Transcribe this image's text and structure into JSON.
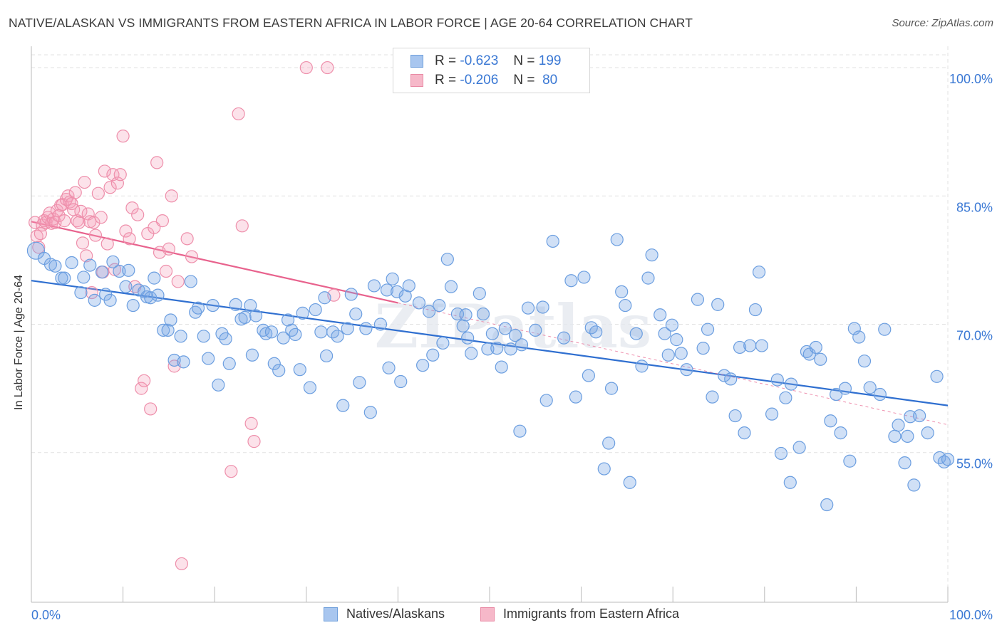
{
  "title": "NATIVE/ALASKAN VS IMMIGRANTS FROM EASTERN AFRICA IN LABOR FORCE | AGE 20-64 CORRELATION CHART",
  "source": "Source: ZipAtlas.com",
  "watermark": "ZIPatlas",
  "legend": {
    "rows": [
      {
        "r_label": "R =",
        "r_value": "-0.623",
        "n_label": "N =",
        "n_value": "199",
        "color": "#a8c6ef",
        "border": "#6f9fdb"
      },
      {
        "r_label": "R =",
        "r_value": "-0.206",
        "n_label": "N =",
        "n_value": "80",
        "color": "#f6b8c9",
        "border": "#e98aa5"
      }
    ]
  },
  "bottom_legend": [
    {
      "label": "Natives/Alaskans",
      "color": "#a8c6ef",
      "border": "#6f9fdb"
    },
    {
      "label": "Immigrants from Eastern Africa",
      "color": "#f6b8c9",
      "border": "#e98aa5"
    }
  ],
  "colors": {
    "blue_fill": "rgba(120,165,230,0.35)",
    "blue_stroke": "#6b9ee0",
    "blue_line": "#2f6fd0",
    "pink_fill": "rgba(245,160,185,0.30)",
    "pink_stroke": "#ee8fab",
    "pink_line": "#e8628d",
    "tick_label": "#3a78d4",
    "grid": "#e2e2e2"
  },
  "chart_data": {
    "type": "scatter",
    "xlabel": "",
    "ylabel": "In Labor Force | Age 20-64",
    "xlim": [
      0,
      100
    ],
    "ylim": [
      37.5,
      102.5
    ],
    "x_ticks": [
      {
        "value": 0,
        "label": "0.0%"
      },
      {
        "value": 100,
        "label": "100.0%"
      }
    ],
    "y_ticks": [
      {
        "value": 55,
        "label": "55.0%"
      },
      {
        "value": 70,
        "label": "70.0%"
      },
      {
        "value": 85,
        "label": "85.0%"
      },
      {
        "value": 100,
        "label": "100.0%"
      }
    ],
    "grid": true,
    "series": [
      {
        "name": "Natives/Alaskans",
        "trend": {
          "x": [
            0,
            100
          ],
          "y": [
            75.1,
            60.5
          ]
        },
        "points": [
          [
            0.5,
            78.6
          ],
          [
            1.4,
            77.7
          ],
          [
            2.1,
            77.0
          ],
          [
            2.6,
            76.8
          ],
          [
            3.3,
            75.4
          ],
          [
            3.6,
            75.4
          ],
          [
            4.4,
            77.2
          ],
          [
            5.4,
            73.7
          ],
          [
            5.7,
            75.5
          ],
          [
            6.4,
            76.9
          ],
          [
            6.9,
            72.8
          ],
          [
            7.7,
            76.1
          ],
          [
            8.1,
            73.5
          ],
          [
            8.6,
            72.8
          ],
          [
            8.9,
            77.3
          ],
          [
            9.6,
            76.2
          ],
          [
            10.3,
            74.4
          ],
          [
            10.6,
            76.3
          ],
          [
            11.1,
            72.2
          ],
          [
            11.7,
            74.0
          ],
          [
            12.3,
            73.8
          ],
          [
            12.6,
            73.2
          ],
          [
            13.0,
            73.1
          ],
          [
            13.4,
            75.4
          ],
          [
            13.8,
            73.4
          ],
          [
            14.4,
            69.3
          ],
          [
            14.9,
            69.3
          ],
          [
            15.2,
            70.5
          ],
          [
            15.6,
            65.8
          ],
          [
            16.3,
            68.6
          ],
          [
            16.6,
            65.6
          ],
          [
            17.4,
            75.0
          ],
          [
            17.9,
            71.4
          ],
          [
            18.2,
            71.9
          ],
          [
            18.8,
            68.6
          ],
          [
            19.3,
            66.0
          ],
          [
            19.8,
            72.2
          ],
          [
            20.4,
            62.9
          ],
          [
            20.8,
            68.9
          ],
          [
            21.2,
            68.3
          ],
          [
            21.6,
            65.4
          ],
          [
            22.3,
            72.3
          ],
          [
            22.9,
            70.6
          ],
          [
            23.3,
            70.8
          ],
          [
            23.9,
            72.2
          ],
          [
            24.1,
            66.4
          ],
          [
            24.5,
            71.0
          ],
          [
            25.3,
            69.3
          ],
          [
            25.6,
            68.9
          ],
          [
            26.2,
            69.1
          ],
          [
            26.5,
            65.4
          ],
          [
            27.0,
            64.6
          ],
          [
            27.5,
            68.4
          ],
          [
            28.0,
            70.5
          ],
          [
            28.4,
            69.3
          ],
          [
            28.8,
            68.8
          ],
          [
            29.3,
            64.7
          ],
          [
            29.6,
            71.3
          ],
          [
            30.4,
            62.6
          ],
          [
            31.0,
            71.7
          ],
          [
            31.6,
            69.1
          ],
          [
            32.0,
            73.1
          ],
          [
            32.2,
            66.3
          ],
          [
            32.9,
            69.1
          ],
          [
            33.4,
            68.6
          ],
          [
            34.0,
            60.5
          ],
          [
            34.5,
            69.5
          ],
          [
            34.9,
            73.5
          ],
          [
            35.4,
            71.2
          ],
          [
            35.8,
            63.2
          ],
          [
            36.5,
            69.5
          ],
          [
            37.0,
            59.7
          ],
          [
            37.4,
            74.5
          ],
          [
            38.1,
            70.0
          ],
          [
            38.8,
            74.0
          ],
          [
            39.0,
            64.9
          ],
          [
            39.4,
            75.3
          ],
          [
            39.9,
            73.8
          ],
          [
            40.3,
            63.3
          ],
          [
            40.8,
            73.3
          ],
          [
            41.2,
            74.5
          ],
          [
            42.3,
            72.5
          ],
          [
            42.7,
            65.2
          ],
          [
            43.4,
            71.5
          ],
          [
            43.8,
            66.4
          ],
          [
            44.5,
            72.2
          ],
          [
            44.9,
            67.8
          ],
          [
            45.4,
            77.6
          ],
          [
            45.8,
            74.4
          ],
          [
            46.5,
            71.2
          ],
          [
            47.1,
            69.8
          ],
          [
            47.4,
            71.1
          ],
          [
            47.6,
            68.4
          ],
          [
            48.0,
            66.6
          ],
          [
            48.9,
            73.6
          ],
          [
            49.3,
            71.2
          ],
          [
            49.8,
            67.1
          ],
          [
            50.3,
            68.9
          ],
          [
            50.8,
            67.2
          ],
          [
            51.3,
            65.0
          ],
          [
            51.7,
            69.5
          ],
          [
            52.3,
            67.1
          ],
          [
            52.8,
            68.7
          ],
          [
            53.3,
            57.5
          ],
          [
            53.5,
            67.6
          ],
          [
            54.2,
            71.9
          ],
          [
            55.0,
            69.3
          ],
          [
            55.8,
            72.0
          ],
          [
            56.2,
            61.1
          ],
          [
            56.9,
            79.7
          ],
          [
            58.1,
            68.4
          ],
          [
            58.9,
            75.1
          ],
          [
            59.4,
            61.5
          ],
          [
            60.3,
            75.5
          ],
          [
            60.8,
            64.0
          ],
          [
            61.1,
            69.6
          ],
          [
            61.6,
            69.1
          ],
          [
            62.5,
            53.1
          ],
          [
            63.0,
            56.1
          ],
          [
            63.3,
            62.5
          ],
          [
            63.9,
            79.9
          ],
          [
            64.4,
            73.8
          ],
          [
            64.8,
            72.2
          ],
          [
            65.3,
            51.5
          ],
          [
            66.0,
            68.9
          ],
          [
            66.6,
            65.1
          ],
          [
            67.3,
            75.4
          ],
          [
            67.7,
            78.1
          ],
          [
            68.6,
            71.1
          ],
          [
            69.1,
            68.9
          ],
          [
            69.5,
            66.4
          ],
          [
            69.9,
            69.9
          ],
          [
            70.4,
            68.2
          ],
          [
            70.9,
            66.6
          ],
          [
            71.5,
            64.7
          ],
          [
            72.7,
            72.9
          ],
          [
            73.3,
            67.2
          ],
          [
            73.8,
            69.4
          ],
          [
            74.3,
            61.5
          ],
          [
            74.9,
            72.3
          ],
          [
            75.6,
            64.0
          ],
          [
            76.3,
            63.6
          ],
          [
            76.8,
            59.3
          ],
          [
            77.3,
            67.3
          ],
          [
            77.8,
            57.3
          ],
          [
            78.4,
            67.5
          ],
          [
            79.0,
            71.7
          ],
          [
            79.4,
            76.1
          ],
          [
            79.7,
            67.5
          ],
          [
            80.8,
            59.5
          ],
          [
            81.4,
            63.5
          ],
          [
            81.8,
            54.9
          ],
          [
            82.3,
            61.4
          ],
          [
            82.8,
            51.5
          ],
          [
            82.9,
            63.0
          ],
          [
            83.8,
            55.6
          ],
          [
            84.6,
            66.8
          ],
          [
            84.9,
            66.5
          ],
          [
            85.6,
            67.3
          ],
          [
            86.1,
            65.9
          ],
          [
            86.8,
            48.9
          ],
          [
            87.2,
            58.7
          ],
          [
            87.8,
            61.8
          ],
          [
            88.3,
            57.3
          ],
          [
            88.8,
            62.5
          ],
          [
            89.3,
            54.0
          ],
          [
            89.8,
            69.5
          ],
          [
            90.3,
            68.5
          ],
          [
            90.9,
            65.7
          ],
          [
            91.5,
            62.6
          ],
          [
            92.6,
            61.8
          ],
          [
            93.1,
            69.4
          ],
          [
            94.2,
            56.9
          ],
          [
            94.6,
            58.2
          ],
          [
            95.3,
            53.8
          ],
          [
            95.6,
            56.9
          ],
          [
            95.9,
            59.2
          ],
          [
            96.3,
            51.2
          ],
          [
            96.9,
            59.3
          ],
          [
            97.8,
            57.3
          ],
          [
            98.8,
            63.9
          ],
          [
            99.1,
            54.4
          ],
          [
            99.6,
            53.9
          ],
          [
            100.0,
            54.2
          ]
        ]
      },
      {
        "name": "Immigrants from Eastern Africa",
        "trend": {
          "x": [
            0,
            40
          ],
          "y": [
            82.0,
            72.5
          ]
        },
        "points": [
          [
            0.4,
            81.9
          ],
          [
            0.6,
            80.3
          ],
          [
            0.8,
            79.0
          ],
          [
            1.0,
            80.6
          ],
          [
            1.2,
            81.6
          ],
          [
            1.4,
            82.1
          ],
          [
            1.6,
            81.9
          ],
          [
            1.8,
            82.5
          ],
          [
            2.0,
            83.0
          ],
          [
            2.2,
            81.8
          ],
          [
            2.4,
            82.3
          ],
          [
            2.6,
            81.9
          ],
          [
            2.8,
            83.3
          ],
          [
            3.0,
            82.7
          ],
          [
            3.2,
            83.9
          ],
          [
            3.4,
            84.0
          ],
          [
            3.6,
            82.1
          ],
          [
            3.8,
            84.6
          ],
          [
            4.0,
            85.0
          ],
          [
            4.2,
            84.3
          ],
          [
            4.4,
            84.1
          ],
          [
            4.6,
            83.4
          ],
          [
            4.8,
            85.4
          ],
          [
            5.0,
            82.1
          ],
          [
            5.2,
            81.9
          ],
          [
            5.4,
            83.2
          ],
          [
            5.6,
            79.5
          ],
          [
            5.8,
            86.6
          ],
          [
            6.0,
            78.0
          ],
          [
            6.2,
            82.9
          ],
          [
            6.4,
            82.0
          ],
          [
            6.6,
            73.7
          ],
          [
            6.8,
            81.9
          ],
          [
            7.0,
            80.4
          ],
          [
            7.3,
            85.3
          ],
          [
            7.6,
            82.5
          ],
          [
            7.8,
            76.1
          ],
          [
            8.0,
            87.9
          ],
          [
            8.3,
            79.4
          ],
          [
            8.6,
            86.0
          ],
          [
            8.9,
            87.5
          ],
          [
            9.1,
            76.4
          ],
          [
            9.4,
            86.5
          ],
          [
            9.7,
            87.5
          ],
          [
            10.0,
            92.0
          ],
          [
            10.3,
            80.9
          ],
          [
            10.7,
            80.0
          ],
          [
            11.0,
            83.6
          ],
          [
            11.3,
            74.4
          ],
          [
            11.6,
            82.8
          ],
          [
            12.0,
            62.5
          ],
          [
            12.3,
            63.4
          ],
          [
            12.7,
            80.6
          ],
          [
            13.0,
            60.1
          ],
          [
            13.4,
            81.3
          ],
          [
            13.7,
            88.9
          ],
          [
            14.0,
            78.4
          ],
          [
            14.3,
            82.1
          ],
          [
            14.7,
            76.2
          ],
          [
            15.0,
            78.8
          ],
          [
            15.3,
            85.0
          ],
          [
            15.6,
            65.1
          ],
          [
            16.0,
            75.0
          ],
          [
            16.4,
            42.0
          ],
          [
            17.0,
            80.0
          ],
          [
            17.5,
            77.9
          ],
          [
            21.8,
            52.8
          ],
          [
            22.6,
            94.6
          ],
          [
            23.0,
            81.5
          ],
          [
            24.0,
            58.4
          ],
          [
            24.3,
            56.3
          ],
          [
            30.0,
            100.0
          ],
          [
            32.3,
            100.0
          ],
          [
            33.0,
            73.4
          ]
        ]
      }
    ]
  }
}
